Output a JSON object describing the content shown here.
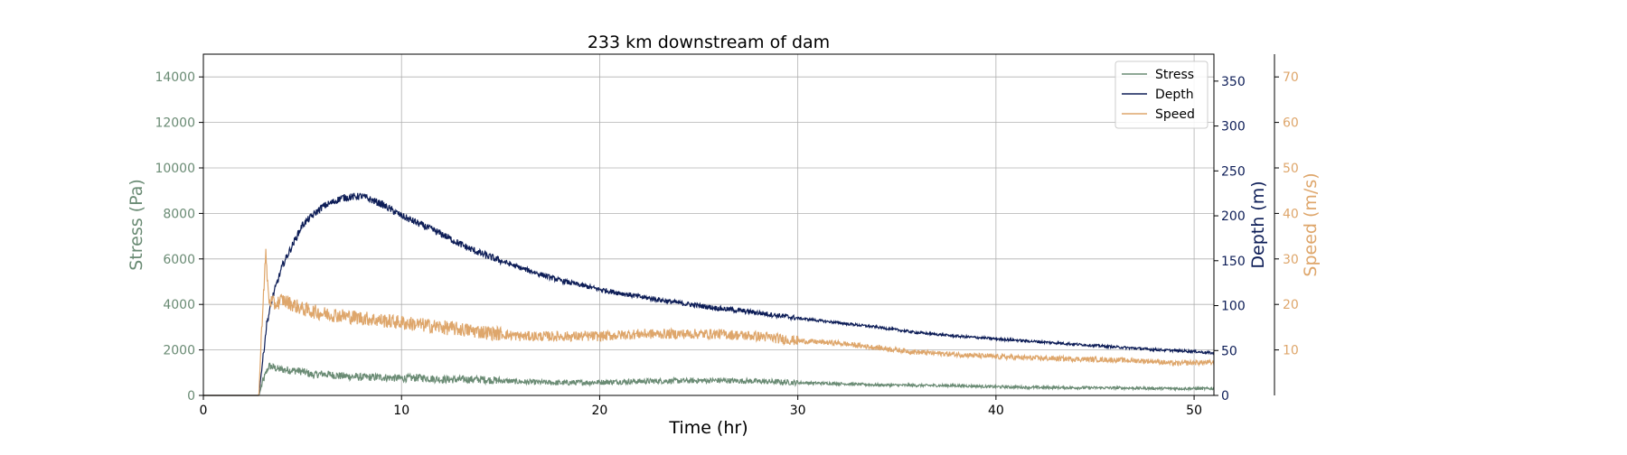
{
  "colors": {
    "stress": "#6a8b74",
    "depth": "#0d1d57",
    "speed": "#dea66b",
    "grid": "#b0b0b0"
  },
  "chart_data": {
    "type": "line",
    "title": "233 km downstream of dam",
    "xlabel": "Time (hr)",
    "xlim": [
      0,
      51
    ],
    "xticks": [
      0,
      10,
      20,
      30,
      40,
      50
    ],
    "grid": true,
    "legend": {
      "placement": "top-right",
      "entries": [
        "Stress",
        "Depth",
        "Speed"
      ]
    },
    "axes": {
      "stress": {
        "label": "Stress (Pa)",
        "side": "left",
        "ylim": [
          0,
          15000
        ],
        "ticks": [
          0,
          2000,
          4000,
          6000,
          8000,
          10000,
          12000,
          14000
        ]
      },
      "depth": {
        "label": "Depth (m)",
        "side": "right",
        "ylim": [
          0,
          380
        ],
        "ticks": [
          0,
          50,
          100,
          150,
          200,
          250,
          300,
          350
        ]
      },
      "speed": {
        "label": "Speed (m/s)",
        "side": "right-outer",
        "ylim": [
          0,
          75
        ],
        "ticks": [
          10,
          20,
          30,
          40,
          50,
          60,
          70
        ]
      }
    },
    "series": [
      {
        "name": "Stress",
        "axis": "stress",
        "x": [
          0,
          2.8,
          3.0,
          3.3,
          3.8,
          4.5,
          5.0,
          5.5,
          6.0,
          7,
          8,
          9,
          10,
          11,
          12,
          14,
          16,
          18,
          20,
          22,
          24,
          26,
          28,
          30,
          32,
          34,
          36,
          38,
          40,
          42,
          44,
          46,
          48,
          50,
          51
        ],
        "y": [
          0,
          0,
          600,
          1300,
          1150,
          1100,
          1050,
          900,
          950,
          850,
          800,
          800,
          750,
          780,
          700,
          700,
          600,
          550,
          580,
          620,
          640,
          660,
          620,
          560,
          520,
          460,
          440,
          430,
          380,
          350,
          340,
          330,
          310,
          300,
          300
        ],
        "noise": 170
      },
      {
        "name": "Depth",
        "axis": "depth",
        "x": [
          0,
          2.8,
          3.0,
          3.2,
          3.5,
          4,
          5,
          6,
          7,
          8,
          9,
          10,
          11,
          12,
          13,
          14,
          15,
          16,
          17,
          18,
          20,
          22,
          24,
          26,
          28,
          30,
          32,
          34,
          36,
          38,
          40,
          42,
          44,
          46,
          48,
          50,
          51
        ],
        "y": [
          0,
          0,
          40,
          80,
          110,
          145,
          190,
          210,
          220,
          222,
          213,
          200,
          190,
          180,
          168,
          158,
          150,
          142,
          135,
          128,
          118,
          110,
          103,
          97,
          92,
          86,
          81,
          76,
          70,
          66,
          63,
          60,
          57,
          54,
          51,
          49,
          47
        ],
        "noise": 4
      },
      {
        "name": "Speed",
        "axis": "speed",
        "x": [
          0,
          2.8,
          3.0,
          3.15,
          3.3,
          3.6,
          4,
          4.5,
          5,
          6,
          7,
          8,
          9,
          10,
          11,
          12,
          14,
          16,
          18,
          20,
          22,
          24,
          26,
          28,
          30,
          32,
          34,
          36,
          38,
          40,
          42,
          44,
          46,
          48,
          49,
          50,
          51
        ],
        "y": [
          0,
          0,
          20,
          31,
          21,
          20,
          21,
          20,
          19,
          18,
          17.5,
          17,
          16.5,
          16,
          15.5,
          15,
          14,
          13,
          13,
          13,
          13.5,
          13.5,
          13.5,
          13,
          12,
          11.5,
          10.5,
          9.5,
          9,
          8.5,
          8.2,
          8,
          7.8,
          7.5,
          7,
          7.2,
          7.2
        ],
        "noise": 1.6
      }
    ]
  }
}
